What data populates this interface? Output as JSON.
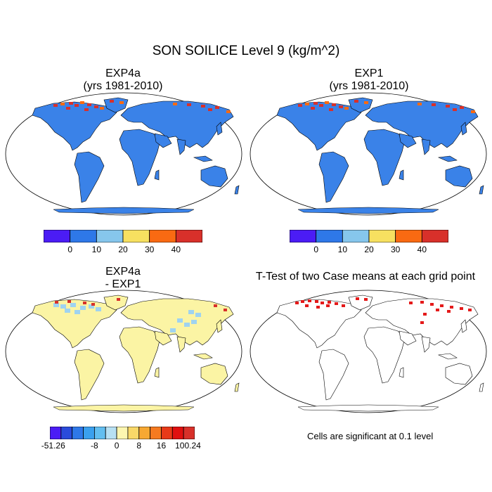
{
  "figure": {
    "title": "SON SOILICE Level 9 (kg/m^2)"
  },
  "panels": [
    {
      "id": "exp4a",
      "title_line1": "EXP4a",
      "title_line2": "(yrs 1981-2010)"
    },
    {
      "id": "exp1",
      "title_line1": "EXP1",
      "title_line2": "(yrs 1981-2010)"
    },
    {
      "id": "diff",
      "title_line1": "EXP4a",
      "title_line2": "- EXP1"
    },
    {
      "id": "ttest",
      "title_line1": "T-Test of two Case means at each grid point",
      "title_line2": ""
    }
  ],
  "colorbar_main": {
    "colors": [
      "#4b1cf5",
      "#2e78e8",
      "#86c6ec",
      "#f7e060",
      "#f96a12",
      "#d8302a"
    ],
    "labels": [
      "0",
      "10",
      "20",
      "30",
      "40"
    ]
  },
  "colorbar_diff": {
    "colors": [
      "#4b1cf5",
      "#2a4bdb",
      "#2e78e8",
      "#3aa0ee",
      "#62bef0",
      "#b7e0f3",
      "#fdf6b0",
      "#f9d868",
      "#f7a832",
      "#f57a20",
      "#e83a18",
      "#e01010",
      "#d8302a"
    ],
    "labels": [
      "-51.26",
      "-8",
      "0",
      "8",
      "16",
      "100.24"
    ]
  },
  "note": "Cells are significant at 0.1 level",
  "map_colors": {
    "ocean": "#ffffff",
    "land_main": "#3a82e8",
    "land_diff": "#fbf4a4",
    "coast": "#000000",
    "high_lat_red": "#d8302a",
    "high_lat_orange": "#f96a12",
    "diff_blue": "#9fd3f0",
    "sig_red": "#e41a1a"
  }
}
